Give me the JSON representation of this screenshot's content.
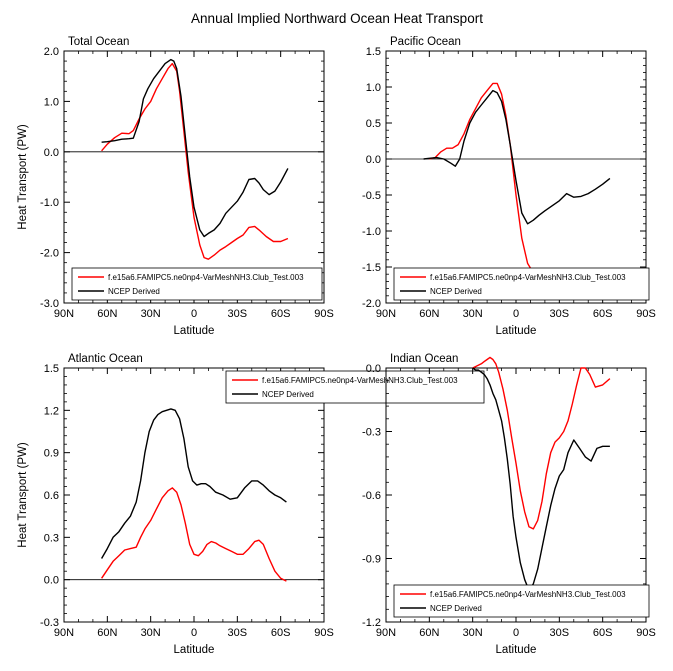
{
  "figure_title": "Annual Implied Northward Ocean Heat Transport",
  "colors": {
    "model": "#ff0000",
    "obs": "#000000",
    "zero_line": "#000000"
  },
  "chart_data": [
    {
      "type": "line",
      "title": "Total Ocean",
      "xlabel": "Latitude",
      "ylabel": "Heat Transport (PW)",
      "xticks": [
        "90N",
        "60N",
        "30N",
        "0",
        "30S",
        "60S",
        "90S"
      ],
      "xlim": [
        90,
        -90
      ],
      "ylim": [
        -3.0,
        2.0
      ],
      "yticks": [
        "2.0",
        "1.0",
        "0.0",
        "-1.0",
        "-2.0",
        "-3.0"
      ],
      "ytick_values": [
        2.0,
        1.0,
        0.0,
        -1.0,
        -2.0,
        -3.0
      ],
      "legend": {
        "placement": "bottom",
        "entries": [
          "f.e15a6.FAMIPC5.ne0np4-VarMeshNH3.Club_Test.003",
          "NCEP Derived"
        ]
      },
      "series": [
        {
          "name": "f.e15a6.FAMIPC5.ne0np4-VarMeshNH3.Club_Test.003",
          "x": [
            64,
            60,
            55,
            50,
            45,
            42,
            38,
            34,
            30,
            26,
            22,
            18,
            15,
            12,
            10,
            7,
            4,
            0,
            -4,
            -7,
            -10,
            -14,
            -18,
            -22,
            -26,
            -30,
            -34,
            -38,
            -42,
            -45,
            -50,
            -55,
            -60,
            -65
          ],
          "y": [
            0.02,
            0.15,
            0.28,
            0.37,
            0.36,
            0.42,
            0.65,
            0.85,
            1.0,
            1.25,
            1.45,
            1.65,
            1.75,
            1.6,
            1.2,
            0.4,
            -0.4,
            -1.3,
            -1.85,
            -2.1,
            -2.13,
            -2.05,
            -1.95,
            -1.88,
            -1.8,
            -1.72,
            -1.65,
            -1.5,
            -1.48,
            -1.55,
            -1.68,
            -1.78,
            -1.78,
            -1.72
          ]
        },
        {
          "name": "NCEP Derived",
          "x": [
            64,
            60,
            55,
            50,
            45,
            42,
            38,
            35,
            32,
            28,
            24,
            20,
            16,
            14,
            12,
            9,
            6,
            3,
            0,
            -4,
            -7,
            -10,
            -14,
            -18,
            -22,
            -26,
            -30,
            -34,
            -38,
            -42,
            -45,
            -48,
            -52,
            -56,
            -60,
            -65
          ],
          "y": [
            0.19,
            0.2,
            0.22,
            0.25,
            0.26,
            0.27,
            0.6,
            1.05,
            1.25,
            1.45,
            1.6,
            1.75,
            1.83,
            1.8,
            1.65,
            1.1,
            0.3,
            -0.5,
            -1.1,
            -1.55,
            -1.68,
            -1.62,
            -1.55,
            -1.42,
            -1.22,
            -1.1,
            -0.98,
            -0.8,
            -0.55,
            -0.53,
            -0.62,
            -0.75,
            -0.85,
            -0.78,
            -0.6,
            -0.33
          ]
        }
      ]
    },
    {
      "type": "line",
      "title": "Pacific Ocean",
      "xlabel": "Latitude",
      "ylabel": "",
      "xticks": [
        "90N",
        "60N",
        "30N",
        "0",
        "30S",
        "60S",
        "90S"
      ],
      "xlim": [
        90,
        -90
      ],
      "ylim": [
        -2.0,
        1.5
      ],
      "yticks": [
        "1.5",
        "1.0",
        "0.5",
        "0.0",
        "-0.5",
        "-1.0",
        "-1.5",
        "-2.0"
      ],
      "ytick_values": [
        1.5,
        1.0,
        0.5,
        0.0,
        -0.5,
        -1.0,
        -1.5,
        -2.0
      ],
      "legend": {
        "placement": "bottom",
        "entries": [
          "f.e15a6.FAMIPC5.ne0np4-VarMeshNH3.Club_Test.003",
          "NCEP Derived"
        ]
      },
      "series": [
        {
          "name": "f.e15a6.FAMIPC5.ne0np4-VarMeshNH3.Club_Test.003",
          "x": [
            60,
            56,
            52,
            48,
            44,
            40,
            36,
            32,
            28,
            24,
            20,
            16,
            13,
            10,
            7,
            4,
            0,
            -4,
            -8,
            -12,
            -16,
            -20,
            -25,
            -30,
            -35,
            -40,
            -45,
            -50,
            -55,
            -60,
            -65
          ],
          "y": [
            0.0,
            0.02,
            0.1,
            0.15,
            0.15,
            0.2,
            0.35,
            0.55,
            0.7,
            0.85,
            0.95,
            1.05,
            1.05,
            0.9,
            0.6,
            0.2,
            -0.5,
            -1.1,
            -1.45,
            -1.58,
            -1.62,
            -1.65,
            -1.65,
            -1.65,
            -1.66,
            -1.68,
            -1.7,
            -1.75,
            -1.78,
            -1.72,
            -1.68
          ]
        },
        {
          "name": "NCEP Derived",
          "x": [
            64,
            60,
            55,
            50,
            45,
            42,
            39,
            36,
            32,
            28,
            24,
            20,
            16,
            13,
            10,
            7,
            4,
            0,
            -4,
            -8,
            -12,
            -16,
            -20,
            -25,
            -30,
            -35,
            -40,
            -45,
            -50,
            -55,
            -60,
            -65
          ],
          "y": [
            0.0,
            0.01,
            0.02,
            0.0,
            -0.06,
            -0.1,
            0.0,
            0.25,
            0.5,
            0.65,
            0.75,
            0.85,
            0.95,
            0.92,
            0.8,
            0.55,
            0.2,
            -0.3,
            -0.75,
            -0.9,
            -0.85,
            -0.78,
            -0.72,
            -0.65,
            -0.58,
            -0.48,
            -0.53,
            -0.52,
            -0.48,
            -0.42,
            -0.35,
            -0.27
          ]
        }
      ]
    },
    {
      "type": "line",
      "title": "Atlantic Ocean",
      "xlabel": "Latitude",
      "ylabel": "Heat Transport (PW)",
      "xticks": [
        "90N",
        "60N",
        "30N",
        "0",
        "30S",
        "60S",
        "90S"
      ],
      "xlim": [
        90,
        -90
      ],
      "ylim": [
        -0.3,
        1.5
      ],
      "yticks": [
        "1.5",
        "1.2",
        "0.9",
        "0.6",
        "0.3",
        "0.0",
        "-0.3"
      ],
      "ytick_values": [
        1.5,
        1.2,
        0.9,
        0.6,
        0.3,
        0.0,
        -0.3
      ],
      "legend": {
        "placement": "top",
        "entries": [
          "f.e15a6.FAMIPC5.ne0np4-VarMeshNH3.Club_Test.003",
          "NCEP Derived"
        ]
      },
      "series": [
        {
          "name": "f.e15a6.FAMIPC5.ne0np4-VarMeshNH3.Club_Test.003",
          "x": [
            64,
            60,
            56,
            52,
            48,
            44,
            40,
            37,
            34,
            30,
            26,
            22,
            18,
            15,
            12,
            9,
            6,
            3,
            0,
            -3,
            -6,
            -9,
            -12,
            -15,
            -18,
            -22,
            -26,
            -30,
            -34,
            -38,
            -42,
            -45,
            -48,
            -52,
            -56,
            -60,
            -64
          ],
          "y": [
            0.01,
            0.07,
            0.13,
            0.17,
            0.21,
            0.22,
            0.23,
            0.3,
            0.36,
            0.42,
            0.5,
            0.58,
            0.63,
            0.65,
            0.62,
            0.53,
            0.4,
            0.25,
            0.18,
            0.17,
            0.2,
            0.25,
            0.27,
            0.26,
            0.24,
            0.22,
            0.2,
            0.18,
            0.18,
            0.22,
            0.27,
            0.28,
            0.25,
            0.15,
            0.06,
            0.01,
            -0.01
          ]
        },
        {
          "name": "NCEP Derived",
          "x": [
            64,
            60,
            56,
            52,
            48,
            44,
            40,
            37,
            34,
            31,
            28,
            25,
            22,
            19,
            16,
            13,
            10,
            7,
            4,
            1,
            -2,
            -5,
            -8,
            -11,
            -15,
            -20,
            -25,
            -30,
            -35,
            -40,
            -44,
            -48,
            -52,
            -56,
            -60,
            -64
          ],
          "y": [
            0.15,
            0.22,
            0.3,
            0.34,
            0.4,
            0.45,
            0.55,
            0.7,
            0.9,
            1.05,
            1.13,
            1.17,
            1.19,
            1.2,
            1.21,
            1.2,
            1.14,
            1.0,
            0.8,
            0.7,
            0.67,
            0.68,
            0.68,
            0.66,
            0.62,
            0.6,
            0.57,
            0.58,
            0.65,
            0.7,
            0.7,
            0.67,
            0.63,
            0.6,
            0.58,
            0.55
          ]
        }
      ]
    },
    {
      "type": "line",
      "title": "Indian Ocean",
      "xlabel": "Latitude",
      "ylabel": "",
      "xticks": [
        "90N",
        "60N",
        "30N",
        "0",
        "30S",
        "60S",
        "90S"
      ],
      "xlim": [
        90,
        -90
      ],
      "ylim": [
        -1.2,
        0.0
      ],
      "yticks": [
        "0.0",
        "-0.3",
        "-0.6",
        "-0.9",
        "-1.2"
      ],
      "ytick_values": [
        0.0,
        -0.3,
        -0.6,
        -0.9,
        -1.2
      ],
      "legend": {
        "placement": "bottom",
        "entries": [
          "f.e15a6.FAMIPC5.ne0np4-VarMeshNH3.Club_Test.003",
          "NCEP Derived"
        ]
      },
      "series": [
        {
          "name": "f.e15a6.FAMIPC5.ne0np4-VarMeshNH3.Club_Test.003",
          "x": [
            30,
            27,
            24,
            22,
            20,
            18,
            16,
            14,
            12,
            9,
            6,
            3,
            0,
            -3,
            -6,
            -9,
            -12,
            -15,
            -18,
            -21,
            -24,
            -27,
            -30,
            -33,
            -36,
            -39,
            -42,
            -45,
            -48,
            -51,
            -55,
            -60,
            -65
          ],
          "y": [
            0.0,
            0.01,
            0.02,
            0.03,
            0.04,
            0.05,
            0.04,
            0.02,
            -0.02,
            -0.1,
            -0.2,
            -0.33,
            -0.45,
            -0.58,
            -0.68,
            -0.75,
            -0.76,
            -0.72,
            -0.63,
            -0.5,
            -0.4,
            -0.35,
            -0.33,
            -0.3,
            -0.25,
            -0.17,
            -0.08,
            0.0,
            0.0,
            -0.03,
            -0.09,
            -0.08,
            -0.05
          ]
        },
        {
          "name": "NCEP Derived",
          "x": [
            30,
            28,
            26,
            24,
            22,
            20,
            18,
            16,
            14,
            12,
            10,
            8,
            6,
            4,
            2,
            0,
            -3,
            -6,
            -9,
            -12,
            -15,
            -18,
            -21,
            -24,
            -27,
            -30,
            -33,
            -36,
            -40,
            -44,
            -48,
            -52,
            -56,
            -60,
            -65
          ],
          "y": [
            0.0,
            -0.01,
            -0.01,
            -0.02,
            -0.03,
            -0.05,
            -0.08,
            -0.12,
            -0.15,
            -0.2,
            -0.25,
            -0.33,
            -0.43,
            -0.55,
            -0.7,
            -0.8,
            -0.92,
            -1.0,
            -1.05,
            -1.02,
            -0.95,
            -0.85,
            -0.75,
            -0.65,
            -0.57,
            -0.51,
            -0.48,
            -0.4,
            -0.34,
            -0.38,
            -0.42,
            -0.44,
            -0.38,
            -0.37,
            -0.37
          ]
        }
      ]
    }
  ]
}
